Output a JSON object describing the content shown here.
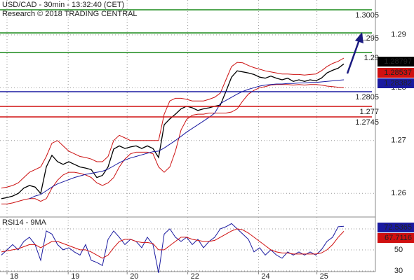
{
  "chart_data": [
    {
      "type": "line",
      "title": "USD/CAD - 30min - 13:32:40 (CET)",
      "subtitle": "Research © 2018 TRADING CENTRAL",
      "x": [
        0,
        1,
        2,
        3,
        4,
        5,
        6,
        7,
        8,
        9,
        10,
        11,
        12,
        13,
        14,
        15,
        16,
        17,
        18,
        19,
        20,
        21,
        22,
        23,
        24,
        25,
        26,
        27,
        28,
        29,
        30,
        31,
        32,
        33,
        34,
        35,
        36,
        37,
        38,
        39,
        40,
        41,
        42,
        43,
        44,
        45,
        46,
        47,
        48,
        49,
        50,
        51,
        52,
        53,
        54,
        55,
        56,
        57,
        58,
        59,
        60,
        61
      ],
      "xlim": [
        0,
        66
      ],
      "ylim": [
        1.2558,
        1.2966
      ],
      "yticks": [
        1.26,
        1.27,
        1.28,
        1.29
      ],
      "grid": true,
      "series": [
        {
          "color": "#000000",
          "values": [
            1.259,
            1.2592,
            1.2595,
            1.26,
            1.261,
            1.2615,
            1.2612,
            1.26,
            1.265,
            1.2672,
            1.266,
            1.2655,
            1.266,
            1.2655,
            1.265,
            1.2648,
            1.2645,
            1.263,
            1.2634,
            1.265,
            1.2684,
            1.269,
            1.2685,
            1.2688,
            1.269,
            1.2685,
            1.269,
            1.2685,
            1.2668,
            1.273,
            1.2741,
            1.275,
            1.276,
            1.2765,
            1.2762,
            1.2757,
            1.276,
            1.2762,
            1.2765,
            1.2767,
            1.2793,
            1.282,
            1.2832,
            1.283,
            1.2828,
            1.2825,
            1.282,
            1.2818,
            1.2822,
            1.2818,
            1.2815,
            1.2818,
            1.2812,
            1.2815,
            1.2812,
            1.2815,
            1.2813,
            1.2818,
            1.2828,
            1.2833,
            1.2837,
            1.2845
          ]
        },
        {
          "color": "#cc1111",
          "values": [
            1.261,
            1.2612,
            1.2615,
            1.262,
            1.263,
            1.264,
            1.2645,
            1.265,
            1.267,
            1.2695,
            1.27,
            1.269,
            1.268,
            1.2675,
            1.267,
            1.2668,
            1.2665,
            1.266,
            1.266,
            1.267,
            1.27,
            1.271,
            1.2705,
            1.27,
            1.27,
            1.27,
            1.27,
            1.27,
            1.27,
            1.275,
            1.2775,
            1.278,
            1.278,
            1.2778,
            1.2775,
            1.2775,
            1.2775,
            1.2778,
            1.2782,
            1.279,
            1.2815,
            1.284,
            1.2848,
            1.2847,
            1.2842,
            1.2838,
            1.2835,
            1.2832,
            1.283,
            1.2828,
            1.2826,
            1.2826,
            1.2825,
            1.2825,
            1.2824,
            1.2825,
            1.2826,
            1.2832,
            1.284,
            1.2846,
            1.285,
            1.2856
          ]
        },
        {
          "color": "#cc1111",
          "values": [
            1.258,
            1.258,
            1.2582,
            1.2585,
            1.2588,
            1.259,
            1.259,
            1.2585,
            1.259,
            1.261,
            1.2625,
            1.2635,
            1.264,
            1.264,
            1.2638,
            1.2635,
            1.263,
            1.262,
            1.2615,
            1.262,
            1.263,
            1.265,
            1.2665,
            1.2675,
            1.2678,
            1.2678,
            1.2678,
            1.2675,
            1.265,
            1.264,
            1.265,
            1.268,
            1.272,
            1.274,
            1.2748,
            1.275,
            1.275,
            1.2752,
            1.2752,
            1.2752,
            1.2752,
            1.2754,
            1.276,
            1.2775,
            1.2788,
            1.2795,
            1.28,
            1.2802,
            1.2805,
            1.2806,
            1.2806,
            1.2806,
            1.2805,
            1.2806,
            1.2805,
            1.2806,
            1.2806,
            1.2805,
            1.2803,
            1.2802,
            1.2801,
            1.28
          ]
        },
        {
          "color": "#1a1aa0",
          "values": [
            null,
            null,
            null,
            null,
            null,
            1.259,
            1.2595,
            1.2598,
            1.2605,
            1.2612,
            1.2618,
            1.2622,
            1.2626,
            1.263,
            1.2633,
            1.2636,
            1.2638,
            1.264,
            1.2642,
            1.2646,
            1.2652,
            1.2658,
            1.2663,
            1.2667,
            1.267,
            1.2673,
            1.2676,
            1.2679,
            1.268,
            1.2686,
            1.2693,
            1.27,
            1.2708,
            1.2716,
            1.2723,
            1.273,
            1.2737,
            1.2744,
            1.2752,
            1.277,
            1.2776,
            1.2782,
            1.2788,
            1.2793,
            1.2797,
            1.28,
            1.2803,
            1.2805,
            1.2806,
            1.2807,
            1.2807,
            1.2808,
            1.2808,
            1.2809,
            1.2809,
            1.281,
            1.281,
            1.2811,
            1.2812,
            1.2813,
            1.2814,
            1.2815
          ]
        }
      ],
      "levels": [
        {
          "label": "1.3005",
          "color": "#1a8a1a"
        },
        {
          "label": "1.295",
          "color": "#1a8a1a"
        },
        {
          "label": "1.29",
          "color": "#1a8a1a"
        },
        {
          "label": "1.2805",
          "color": "#1a1aa0"
        },
        {
          "label": "1.277",
          "color": "#d01010"
        },
        {
          "label": "1.2745",
          "color": "#d01010"
        }
      ],
      "price_tags": [
        {
          "label": "1.28797",
          "color": "#000000"
        },
        {
          "label": "1.28537",
          "color": "#d01010"
        },
        {
          "label": "1.28382",
          "color": "#1a1aa0"
        }
      ]
    },
    {
      "type": "line",
      "title": "RSI14 - 9MA",
      "x": [
        0,
        1,
        2,
        3,
        4,
        5,
        6,
        7,
        8,
        9,
        10,
        11,
        12,
        13,
        14,
        15,
        16,
        17,
        18,
        19,
        20,
        21,
        22,
        23,
        24,
        25,
        26,
        27,
        28,
        29,
        30,
        31,
        32,
        33,
        34,
        35,
        36,
        37,
        38,
        39,
        40,
        41,
        42,
        43,
        44,
        45,
        46,
        47,
        48,
        49,
        50,
        51,
        52,
        53,
        54,
        55,
        56,
        57,
        58,
        59,
        60,
        61
      ],
      "xlim": [
        0,
        66
      ],
      "xticks": [
        {
          "value": 1,
          "label": "18"
        },
        {
          "value": 11.9,
          "label": "19"
        },
        {
          "value": 22.4,
          "label": "20"
        },
        {
          "value": 33.2,
          "label": "22"
        },
        {
          "value": 45.8,
          "label": "24"
        },
        {
          "value": 56.2,
          "label": "25"
        }
      ],
      "ylim": [
        29.3,
        81.3
      ],
      "yticks": [
        30,
        50,
        70
      ],
      "grid": true,
      "series": [
        {
          "color": "#1a1aa0",
          "values": [
            45,
            50,
            55,
            50,
            58,
            62,
            55,
            40,
            68,
            65,
            55,
            50,
            52,
            48,
            45,
            55,
            40,
            38,
            35,
            60,
            68,
            62,
            55,
            60,
            58,
            52,
            62,
            55,
            28,
            65,
            70,
            62,
            58,
            62,
            55,
            60,
            52,
            58,
            62,
            70,
            72,
            75,
            70,
            65,
            60,
            48,
            52,
            45,
            50,
            45,
            42,
            48,
            45,
            48,
            45,
            48,
            45,
            50,
            58,
            62,
            72,
            72.5
          ]
        },
        {
          "color": "#d01010",
          "values": [
            48,
            49,
            50,
            51,
            53,
            55,
            55,
            52,
            55,
            58,
            58,
            56,
            54,
            52,
            50,
            50,
            48,
            45,
            42,
            45,
            52,
            58,
            60,
            60,
            58,
            57,
            57,
            56,
            50,
            50,
            54,
            58,
            62,
            62,
            60,
            59,
            58,
            58,
            59,
            62,
            65,
            68,
            70,
            69,
            66,
            62,
            58,
            54,
            50,
            48,
            47,
            47,
            46,
            46,
            46,
            46,
            46,
            47,
            50,
            55,
            62,
            67.7
          ]
        }
      ],
      "tags": [
        {
          "label": "72.5365",
          "color": "#1a1aa0"
        },
        {
          "label": "67.7116",
          "color": "#d01010"
        }
      ]
    }
  ]
}
